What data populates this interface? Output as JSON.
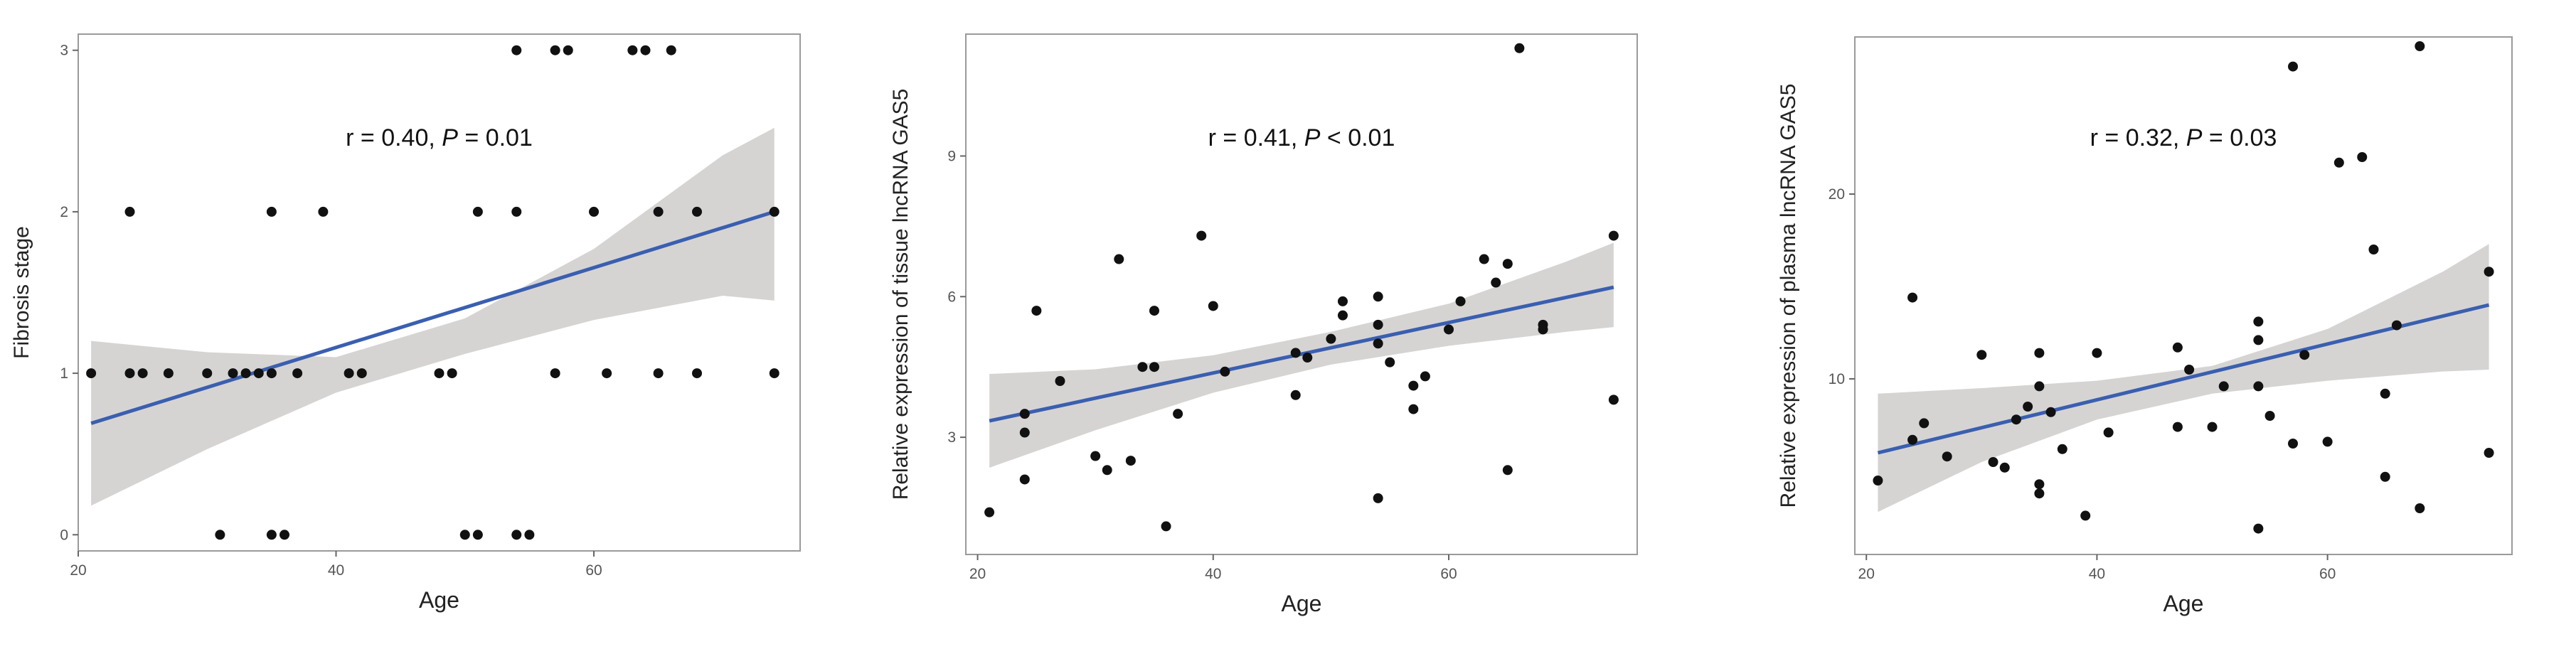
{
  "chart_data": [
    {
      "type": "scatter",
      "title": "",
      "xlabel": "Age",
      "ylabel": "Fibrosis stage",
      "annotation": {
        "prefix": "r = 0.40, ",
        "p_symbol": "P",
        "suffix": " = 0.01"
      },
      "xlim": [
        20,
        76
      ],
      "ylim": [
        -0.1,
        3.1
      ],
      "x_ticks": [
        20,
        40,
        60
      ],
      "y_ticks": [
        0,
        1,
        2,
        3
      ],
      "grid": false,
      "points": [
        [
          21,
          1
        ],
        [
          24,
          1
        ],
        [
          25,
          1
        ],
        [
          27,
          1
        ],
        [
          30,
          1
        ],
        [
          32,
          1
        ],
        [
          33,
          1
        ],
        [
          34,
          1
        ],
        [
          35,
          1
        ],
        [
          37,
          1
        ],
        [
          41,
          1
        ],
        [
          42,
          1
        ],
        [
          48,
          1
        ],
        [
          49,
          1
        ],
        [
          57,
          1
        ],
        [
          61,
          1
        ],
        [
          65,
          1
        ],
        [
          68,
          1
        ],
        [
          74,
          1
        ],
        [
          24,
          2
        ],
        [
          35,
          2
        ],
        [
          39,
          2
        ],
        [
          51,
          2
        ],
        [
          54,
          2
        ],
        [
          60,
          2
        ],
        [
          65,
          2
        ],
        [
          68,
          2
        ],
        [
          74,
          2
        ],
        [
          31,
          0
        ],
        [
          35,
          0
        ],
        [
          36,
          0
        ],
        [
          50,
          0
        ],
        [
          51,
          0
        ],
        [
          54,
          0
        ],
        [
          55,
          0
        ],
        [
          54,
          3
        ],
        [
          57,
          3
        ],
        [
          58,
          3
        ],
        [
          63,
          3
        ],
        [
          64,
          3
        ],
        [
          66,
          3
        ]
      ],
      "fit": {
        "x": [
          21,
          74
        ],
        "y": [
          0.69,
          2.0
        ]
      },
      "band": {
        "x": [
          21,
          30,
          40,
          50,
          60,
          70,
          74
        ],
        "lower": [
          0.18,
          0.53,
          0.88,
          1.12,
          1.33,
          1.48,
          1.45
        ],
        "upper": [
          1.2,
          1.13,
          1.1,
          1.34,
          1.77,
          2.35,
          2.52
        ]
      },
      "colors": {
        "fit": "#3a5fb0",
        "band": "#d6d4d3",
        "point": "#111111"
      }
    },
    {
      "type": "scatter",
      "title": "",
      "xlabel": "Age",
      "ylabel": "Relative expression of tissue lncRNA GAS5",
      "annotation": {
        "prefix": "r = 0.41, ",
        "p_symbol": "P",
        "suffix": " < 0.01"
      },
      "xlim": [
        19,
        76
      ],
      "ylim": [
        0.5,
        11.6
      ],
      "x_ticks": [
        20,
        40,
        60
      ],
      "y_ticks": [
        3,
        6,
        9
      ],
      "grid": false,
      "points": [
        [
          21,
          1.4
        ],
        [
          24,
          3.1
        ],
        [
          24,
          2.1
        ],
        [
          24,
          3.5
        ],
        [
          25,
          5.7
        ],
        [
          27,
          4.2
        ],
        [
          30,
          2.6
        ],
        [
          31,
          2.3
        ],
        [
          32,
          6.8
        ],
        [
          33,
          2.5
        ],
        [
          34,
          4.5
        ],
        [
          35,
          4.5
        ],
        [
          35,
          5.7
        ],
        [
          36,
          1.1
        ],
        [
          37,
          3.5
        ],
        [
          39,
          7.3
        ],
        [
          40,
          5.8
        ],
        [
          41,
          4.4
        ],
        [
          47,
          3.9
        ],
        [
          47,
          4.8
        ],
        [
          48,
          4.7
        ],
        [
          50,
          5.1
        ],
        [
          51,
          5.6
        ],
        [
          51,
          5.9
        ],
        [
          54,
          5.4
        ],
        [
          54,
          5.0
        ],
        [
          54,
          6.0
        ],
        [
          54,
          1.7
        ],
        [
          55,
          4.6
        ],
        [
          57,
          3.6
        ],
        [
          57,
          4.1
        ],
        [
          58,
          4.3
        ],
        [
          60,
          5.3
        ],
        [
          61,
          5.9
        ],
        [
          63,
          6.8
        ],
        [
          64,
          6.3
        ],
        [
          65,
          6.7
        ],
        [
          65,
          2.3
        ],
        [
          66,
          11.3
        ],
        [
          68,
          5.4
        ],
        [
          68,
          5.3
        ],
        [
          74,
          3.8
        ],
        [
          74,
          7.3
        ]
      ],
      "fit": {
        "x": [
          21,
          74
        ],
        "y": [
          3.35,
          6.2
        ]
      },
      "band": {
        "x": [
          21,
          30,
          40,
          50,
          60,
          70,
          74
        ],
        "lower": [
          2.35,
          3.15,
          3.95,
          4.55,
          4.95,
          5.25,
          5.35
        ],
        "upper": [
          4.35,
          4.45,
          4.75,
          5.25,
          5.85,
          6.75,
          7.15
        ]
      },
      "colors": {
        "fit": "#3a5fb0",
        "band": "#d6d4d3",
        "point": "#111111"
      }
    },
    {
      "type": "scatter",
      "title": "",
      "xlabel": "Age",
      "ylabel": "Relative expression of plasma lncRNA GAS5",
      "annotation": {
        "prefix": "r = 0.32, ",
        "p_symbol": "P",
        "suffix": " = 0.03"
      },
      "xlim": [
        19,
        76
      ],
      "ylim": [
        0.5,
        28.5
      ],
      "x_ticks": [
        20,
        40,
        60
      ],
      "y_ticks": [
        10,
        20
      ],
      "grid": false,
      "points": [
        [
          21,
          4.5
        ],
        [
          24,
          14.4
        ],
        [
          24,
          6.7
        ],
        [
          25,
          7.6
        ],
        [
          27,
          5.8
        ],
        [
          30,
          11.3
        ],
        [
          31,
          5.5
        ],
        [
          32,
          5.2
        ],
        [
          33,
          7.8
        ],
        [
          34,
          8.5
        ],
        [
          35,
          9.6
        ],
        [
          35,
          11.4
        ],
        [
          35,
          4.3
        ],
        [
          35,
          3.8
        ],
        [
          36,
          8.2
        ],
        [
          37,
          6.2
        ],
        [
          39,
          2.6
        ],
        [
          40,
          11.4
        ],
        [
          41,
          7.1
        ],
        [
          47,
          7.4
        ],
        [
          47,
          11.7
        ],
        [
          48,
          10.5
        ],
        [
          50,
          7.4
        ],
        [
          51,
          9.6
        ],
        [
          54,
          12.1
        ],
        [
          54,
          13.1
        ],
        [
          54,
          9.6
        ],
        [
          54,
          1.9
        ],
        [
          55,
          8.0
        ],
        [
          57,
          6.5
        ],
        [
          57,
          26.9
        ],
        [
          58,
          11.3
        ],
        [
          60,
          6.6
        ],
        [
          61,
          21.7
        ],
        [
          63,
          22.0
        ],
        [
          64,
          17.0
        ],
        [
          65,
          9.2
        ],
        [
          65,
          4.7
        ],
        [
          66,
          12.9
        ],
        [
          68,
          28.0
        ],
        [
          68,
          3.0
        ],
        [
          74,
          15.8
        ],
        [
          74,
          6.0
        ]
      ],
      "fit": {
        "x": [
          21,
          74
        ],
        "y": [
          6.0,
          14.0
        ]
      },
      "band": {
        "x": [
          21,
          30,
          40,
          50,
          60,
          70,
          74
        ],
        "lower": [
          2.8,
          5.5,
          7.8,
          9.2,
          9.9,
          10.4,
          10.5
        ],
        "upper": [
          9.2,
          9.5,
          9.9,
          10.7,
          12.7,
          15.8,
          17.3
        ]
      },
      "colors": {
        "fit": "#3a5fb0",
        "band": "#d6d4d3",
        "point": "#111111"
      }
    }
  ]
}
